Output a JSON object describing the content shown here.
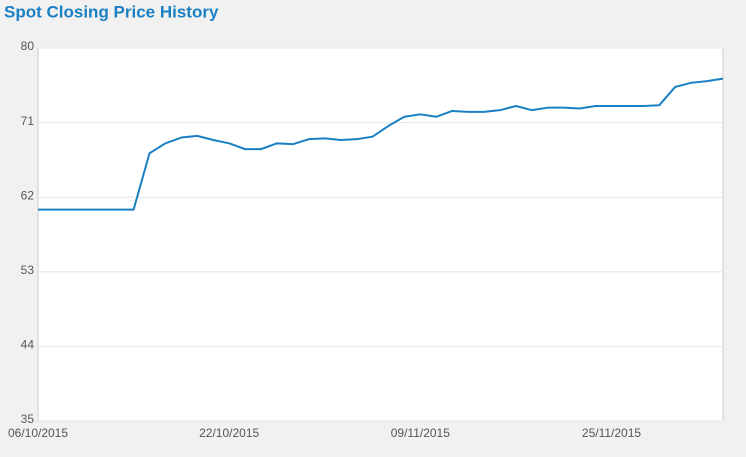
{
  "chart_data": {
    "type": "line",
    "title": "Spot Closing Price History",
    "categories": [
      "06/10/2015",
      null,
      null,
      null,
      null,
      null,
      null,
      null,
      null,
      null,
      null,
      null,
      "22/10/2015",
      null,
      null,
      null,
      null,
      null,
      null,
      null,
      null,
      null,
      null,
      null,
      "09/11/2015",
      null,
      null,
      null,
      null,
      null,
      null,
      null,
      null,
      null,
      null,
      null,
      "25/11/2015",
      null,
      null,
      null,
      null,
      null,
      null,
      null
    ],
    "series": [
      {
        "name": "Spot Closing Price",
        "color": "#1a80c4",
        "values": [
          60.5,
          60.5,
          60.5,
          60.5,
          60.5,
          60.5,
          60.5,
          67.3,
          68.5,
          69.2,
          69.4,
          68.9,
          68.5,
          67.8,
          67.8,
          68.5,
          68.4,
          69.0,
          69.1,
          68.9,
          69.0,
          69.3,
          70.6,
          71.7,
          72.0,
          71.7,
          72.4,
          72.3,
          72.3,
          72.5,
          73.0,
          72.5,
          72.8,
          72.8,
          72.7,
          73.0,
          73.0,
          73.0,
          73.0,
          73.1,
          75.3,
          75.8,
          76.0,
          76.3
        ]
      }
    ],
    "ylim": [
      35,
      80
    ],
    "yticks": [
      35,
      44,
      53,
      62,
      71,
      80
    ],
    "grid": true
  }
}
